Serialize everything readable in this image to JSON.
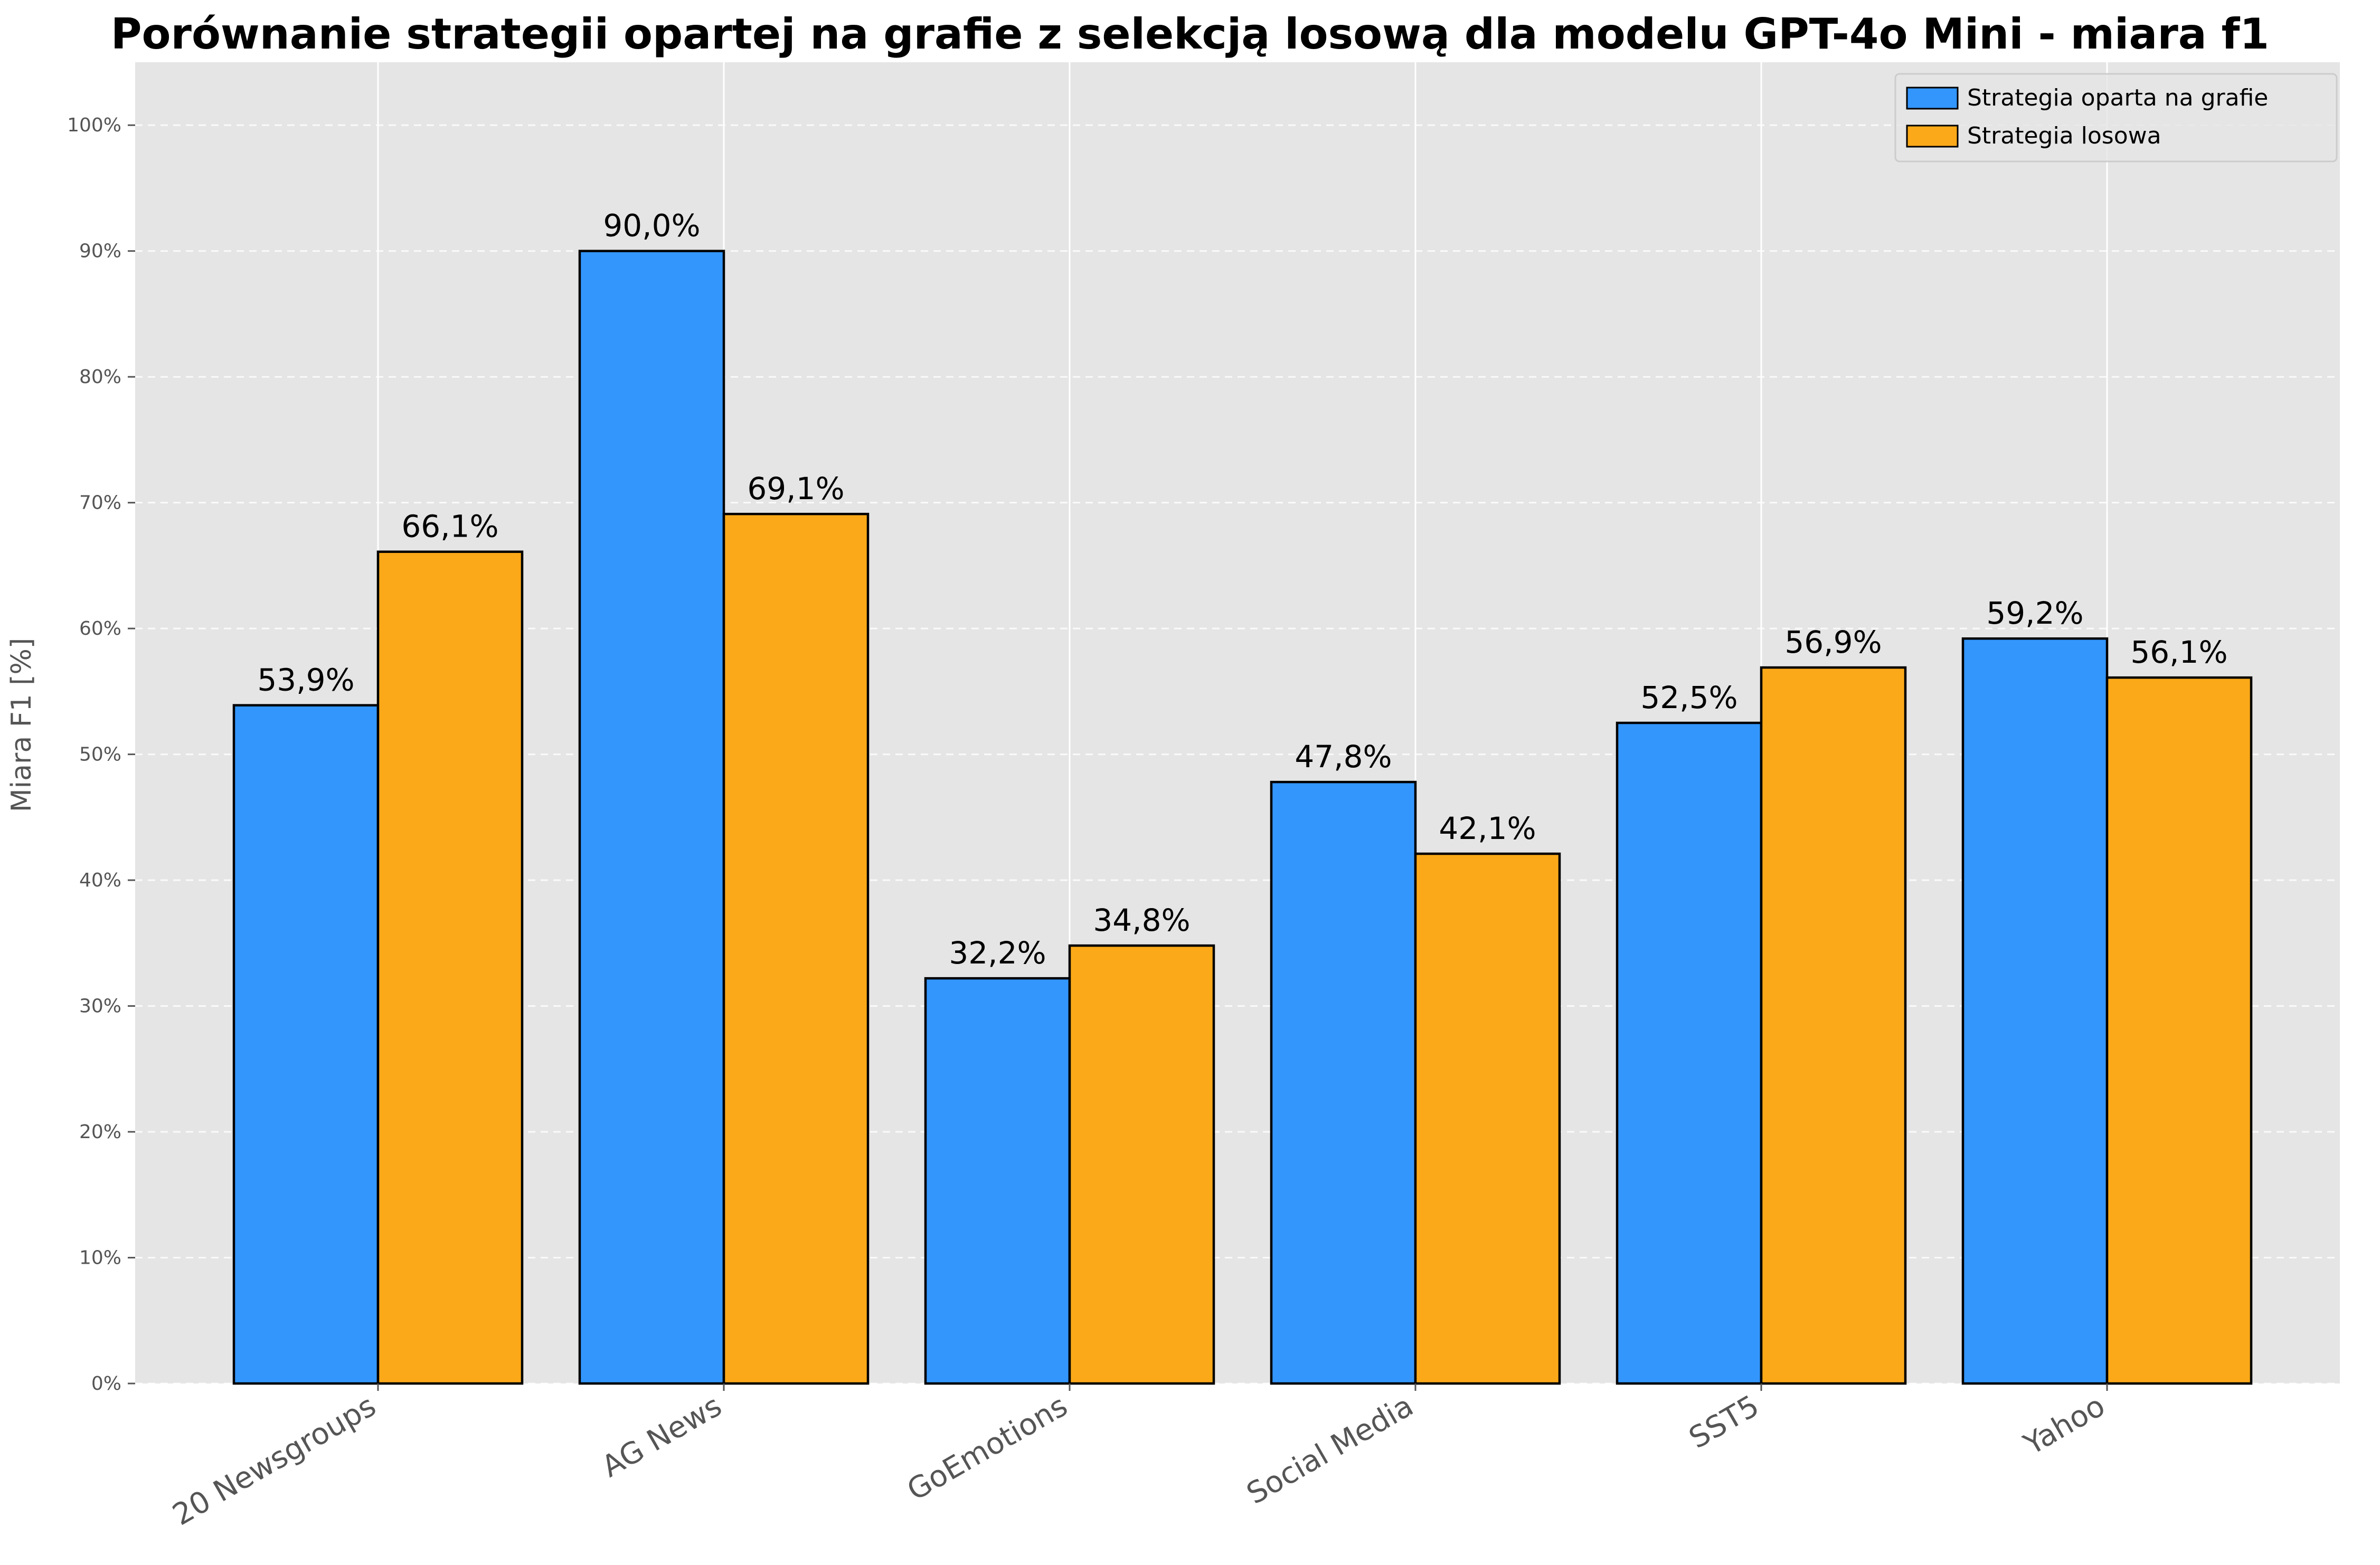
{
  "colors": {
    "background": "#e5e5e5",
    "grid": "#ffffff",
    "series_graph": "#3396fd",
    "series_random": "#fba919",
    "edge": "#000000"
  },
  "chart_data": {
    "type": "bar",
    "title": "Porównanie strategii opartej na grafie z selekcją losową dla modelu GPT-4o Mini - miara f1",
    "xlabel": "",
    "ylabel": "Miara F1 [%]",
    "ylim": [
      0,
      105
    ],
    "yticks": [
      0,
      10,
      20,
      30,
      40,
      50,
      60,
      70,
      80,
      90,
      100
    ],
    "ytick_labels": [
      "0%",
      "10%",
      "20%",
      "30%",
      "40%",
      "50%",
      "60%",
      "70%",
      "80%",
      "90%",
      "100%"
    ],
    "grid": true,
    "legend_position": "top-right",
    "categories": [
      "20 Newsgroups",
      "AG News",
      "GoEmotions",
      "Social Media",
      "SST5",
      "Yahoo"
    ],
    "series": [
      {
        "name": "Strategia oparta na grafie",
        "color": "#3396fd",
        "values": [
          53.9,
          90.0,
          32.2,
          47.8,
          52.5,
          59.2
        ],
        "labels": [
          "53,9%",
          "90,0%",
          "32,2%",
          "47,8%",
          "52,5%",
          "59,2%"
        ]
      },
      {
        "name": "Strategia losowa",
        "color": "#fba919",
        "values": [
          66.1,
          69.1,
          34.8,
          42.1,
          56.9,
          56.1
        ],
        "labels": [
          "66,1%",
          "69,1%",
          "34,8%",
          "42,1%",
          "56,9%",
          "56,1%"
        ]
      }
    ]
  }
}
